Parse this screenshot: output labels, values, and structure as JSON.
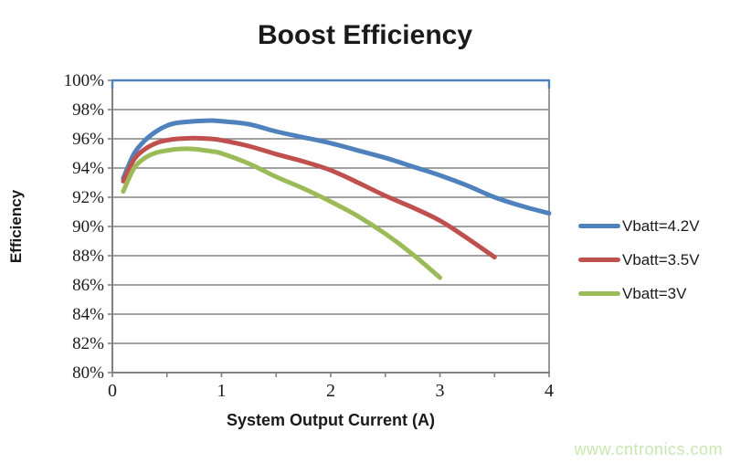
{
  "title": "Boost Efficiency",
  "watermark": "www.cntronics.com",
  "colors": {
    "series_blue": "#4F81BD",
    "series_red": "#C0504D",
    "series_green": "#9BBB59",
    "gridline": "#808080",
    "axis_line": "#808080",
    "plot_top_border": "#4F81BD",
    "watermark_green": "#c9e7b1",
    "text": "#1a1a1a"
  },
  "chart_data": {
    "type": "line",
    "title": "Boost Efficiency",
    "xlabel": "System Output Current (A)",
    "ylabel": "Efficiency",
    "xlim": [
      0,
      4
    ],
    "ylim_percent": [
      80,
      100
    ],
    "grid": "horizontal",
    "legend_position": "right",
    "x_ticks": {
      "values": [
        0,
        1,
        2,
        3,
        4
      ],
      "labels": [
        "0",
        "1",
        "2",
        "3",
        "4"
      ],
      "minor_step": 0.5
    },
    "y_ticks": {
      "values": [
        100,
        98,
        96,
        94,
        92,
        90,
        88,
        86,
        84,
        82,
        80
      ],
      "labels": [
        "100%",
        "98%",
        "96%",
        "94%",
        "92%",
        "90%",
        "88%",
        "86%",
        "84%",
        "82%",
        "80%"
      ]
    },
    "series": [
      {
        "name": "Vbatt=4.2V",
        "color": "#4F81BD",
        "points": [
          [
            0.1,
            93.3
          ],
          [
            0.2,
            95.0
          ],
          [
            0.3,
            95.9
          ],
          [
            0.4,
            96.5
          ],
          [
            0.5,
            96.9
          ],
          [
            0.6,
            97.1
          ],
          [
            0.75,
            97.2
          ],
          [
            0.9,
            97.25
          ],
          [
            1.0,
            97.2
          ],
          [
            1.25,
            97.0
          ],
          [
            1.5,
            96.5
          ],
          [
            1.75,
            96.1
          ],
          [
            2.0,
            95.7
          ],
          [
            2.25,
            95.2
          ],
          [
            2.5,
            94.7
          ],
          [
            2.75,
            94.1
          ],
          [
            3.0,
            93.5
          ],
          [
            3.25,
            92.8
          ],
          [
            3.5,
            92.0
          ],
          [
            3.75,
            91.4
          ],
          [
            4.0,
            90.9
          ]
        ]
      },
      {
        "name": "Vbatt=3.5V",
        "color": "#C0504D",
        "points": [
          [
            0.1,
            93.1
          ],
          [
            0.2,
            94.6
          ],
          [
            0.3,
            95.3
          ],
          [
            0.4,
            95.7
          ],
          [
            0.5,
            95.9
          ],
          [
            0.6,
            96.0
          ],
          [
            0.75,
            96.05
          ],
          [
            0.9,
            96.0
          ],
          [
            1.0,
            95.9
          ],
          [
            1.25,
            95.5
          ],
          [
            1.5,
            94.95
          ],
          [
            1.75,
            94.45
          ],
          [
            2.0,
            93.85
          ],
          [
            2.25,
            93.0
          ],
          [
            2.5,
            92.1
          ],
          [
            2.75,
            91.3
          ],
          [
            3.0,
            90.4
          ],
          [
            3.25,
            89.2
          ],
          [
            3.5,
            87.9
          ]
        ]
      },
      {
        "name": "Vbatt=3V",
        "color": "#9BBB59",
        "points": [
          [
            0.1,
            92.4
          ],
          [
            0.2,
            94.0
          ],
          [
            0.3,
            94.7
          ],
          [
            0.4,
            95.05
          ],
          [
            0.5,
            95.2
          ],
          [
            0.6,
            95.3
          ],
          [
            0.75,
            95.3
          ],
          [
            0.9,
            95.15
          ],
          [
            1.0,
            95.0
          ],
          [
            1.25,
            94.3
          ],
          [
            1.5,
            93.4
          ],
          [
            1.75,
            92.6
          ],
          [
            2.0,
            91.7
          ],
          [
            2.25,
            90.7
          ],
          [
            2.5,
            89.5
          ],
          [
            2.75,
            88.1
          ],
          [
            3.0,
            86.5
          ]
        ]
      }
    ]
  }
}
